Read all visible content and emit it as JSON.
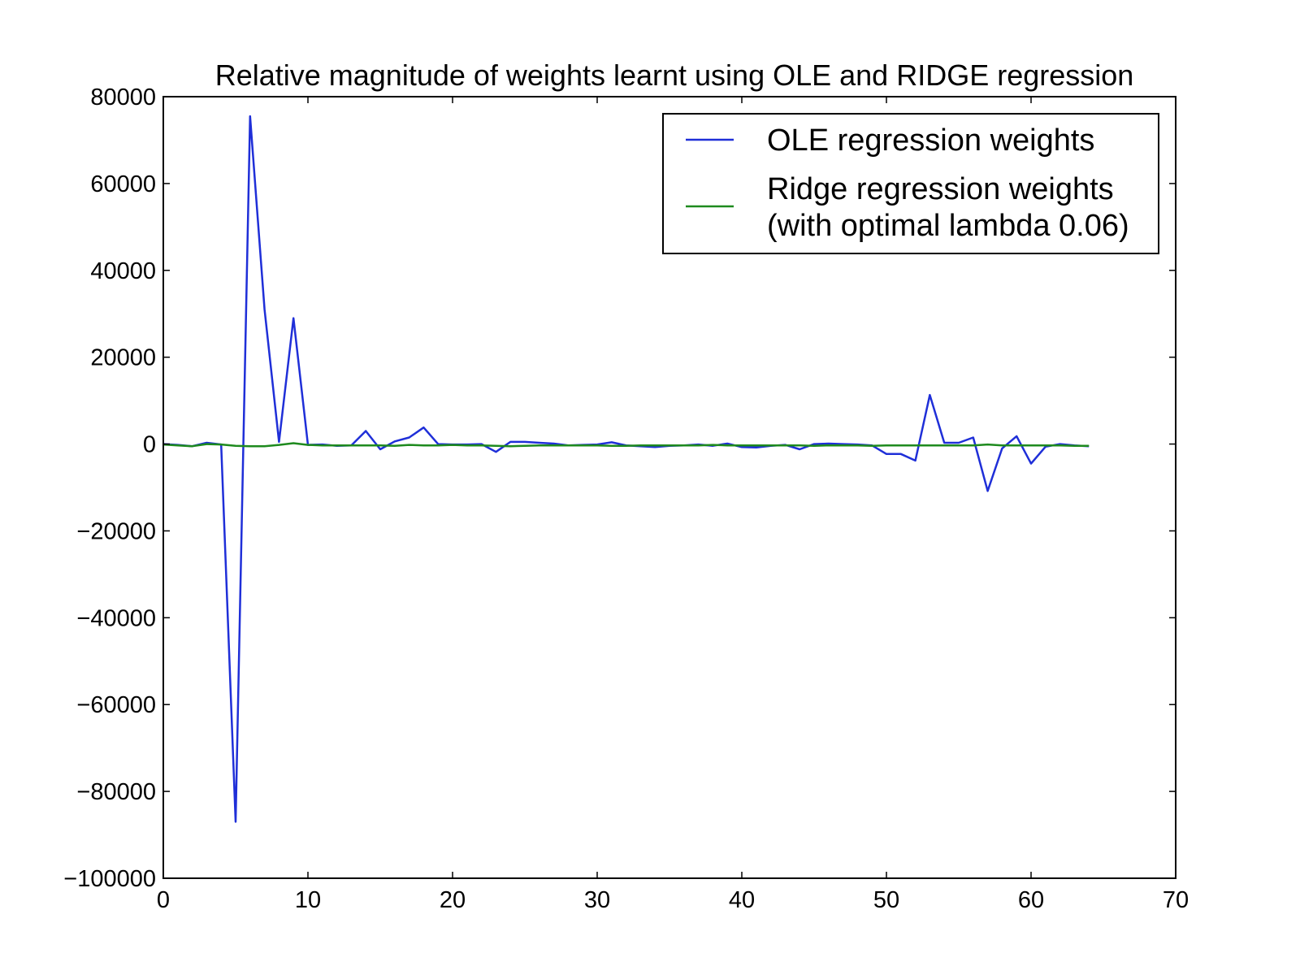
{
  "chart_data": {
    "type": "line",
    "title": "Relative magnitude of weights learnt using OLE and RIDGE regression",
    "xlabel": "",
    "ylabel": "",
    "xlim": [
      0,
      70
    ],
    "ylim": [
      -100000,
      80000
    ],
    "xticks": [
      0,
      10,
      20,
      30,
      40,
      50,
      60,
      70
    ],
    "xtick_labels": [
      "0",
      "10",
      "20",
      "30",
      "40",
      "50",
      "60",
      "70"
    ],
    "yticks": [
      80000,
      60000,
      40000,
      20000,
      0,
      -20000,
      -40000,
      -60000,
      -80000,
      -100000
    ],
    "ytick_labels": [
      "80000",
      "60000",
      "40000",
      "20000",
      "0",
      "−20000",
      "−40000",
      "−60000",
      "−80000",
      "−100000"
    ],
    "grid": false,
    "legend_position": "top-right",
    "legend_entries": [
      {
        "label_line1": "OLE regression weights",
        "label_line2": "",
        "color": "#1f2fd8"
      },
      {
        "label_line1": "Ridge regression weights",
        "label_line2": "(with optimal lambda 0.06)",
        "color": "#1e8a1e"
      }
    ],
    "series": [
      {
        "color": "#1f2fd8",
        "x": [
          0,
          1,
          2,
          3,
          4,
          5,
          6,
          7,
          8,
          9,
          10,
          11,
          12,
          13,
          14,
          15,
          16,
          17,
          18,
          19,
          20,
          21,
          22,
          23,
          24,
          25,
          26,
          27,
          28,
          29,
          30,
          31,
          32,
          33,
          34,
          35,
          36,
          37,
          38,
          39,
          40,
          41,
          42,
          43,
          44,
          45,
          46,
          47,
          48,
          49,
          50,
          51,
          52,
          53,
          54,
          55,
          56,
          57,
          58,
          59,
          60,
          61,
          62,
          63,
          64
        ],
        "values": [
          0,
          -200,
          -500,
          300,
          -100,
          -87000,
          75500,
          31000,
          500,
          29000,
          -200,
          -100,
          -400,
          -300,
          3000,
          -1200,
          600,
          1500,
          3800,
          0,
          -100,
          -100,
          0,
          -1800,
          500,
          500,
          300,
          100,
          -300,
          -200,
          -100,
          400,
          -300,
          -500,
          -700,
          -400,
          -300,
          -100,
          -400,
          100,
          -700,
          -800,
          -400,
          -200,
          -1200,
          0,
          100,
          0,
          -100,
          -300,
          -2300,
          -2300,
          -3800,
          11300,
          300,
          300,
          1500,
          -10800,
          -1000,
          1800,
          -4500,
          -600,
          0,
          -300,
          -500
        ]
      },
      {
        "color": "#1e8a1e",
        "x": [
          0,
          1,
          2,
          3,
          4,
          5,
          6,
          7,
          8,
          9,
          10,
          11,
          12,
          13,
          14,
          15,
          16,
          17,
          18,
          19,
          20,
          21,
          22,
          23,
          24,
          25,
          26,
          27,
          28,
          29,
          30,
          31,
          32,
          33,
          34,
          35,
          36,
          37,
          38,
          39,
          40,
          41,
          42,
          43,
          44,
          45,
          46,
          47,
          48,
          49,
          50,
          51,
          52,
          53,
          54,
          55,
          56,
          57,
          58,
          59,
          60,
          61,
          62,
          63,
          64
        ],
        "values": [
          -100,
          -300,
          -500,
          0,
          -100,
          -400,
          -500,
          -500,
          -200,
          200,
          -200,
          -300,
          -300,
          -300,
          -300,
          -300,
          -400,
          -200,
          -300,
          -300,
          -200,
          -300,
          -300,
          -400,
          -500,
          -400,
          -300,
          -300,
          -300,
          -300,
          -300,
          -400,
          -400,
          -300,
          -300,
          -300,
          -300,
          -300,
          -200,
          -300,
          -300,
          -300,
          -300,
          -300,
          -300,
          -400,
          -300,
          -300,
          -300,
          -400,
          -300,
          -300,
          -300,
          -300,
          -300,
          -300,
          -300,
          -100,
          -300,
          -300,
          -300,
          -300,
          -300,
          -400,
          -400
        ]
      }
    ]
  }
}
